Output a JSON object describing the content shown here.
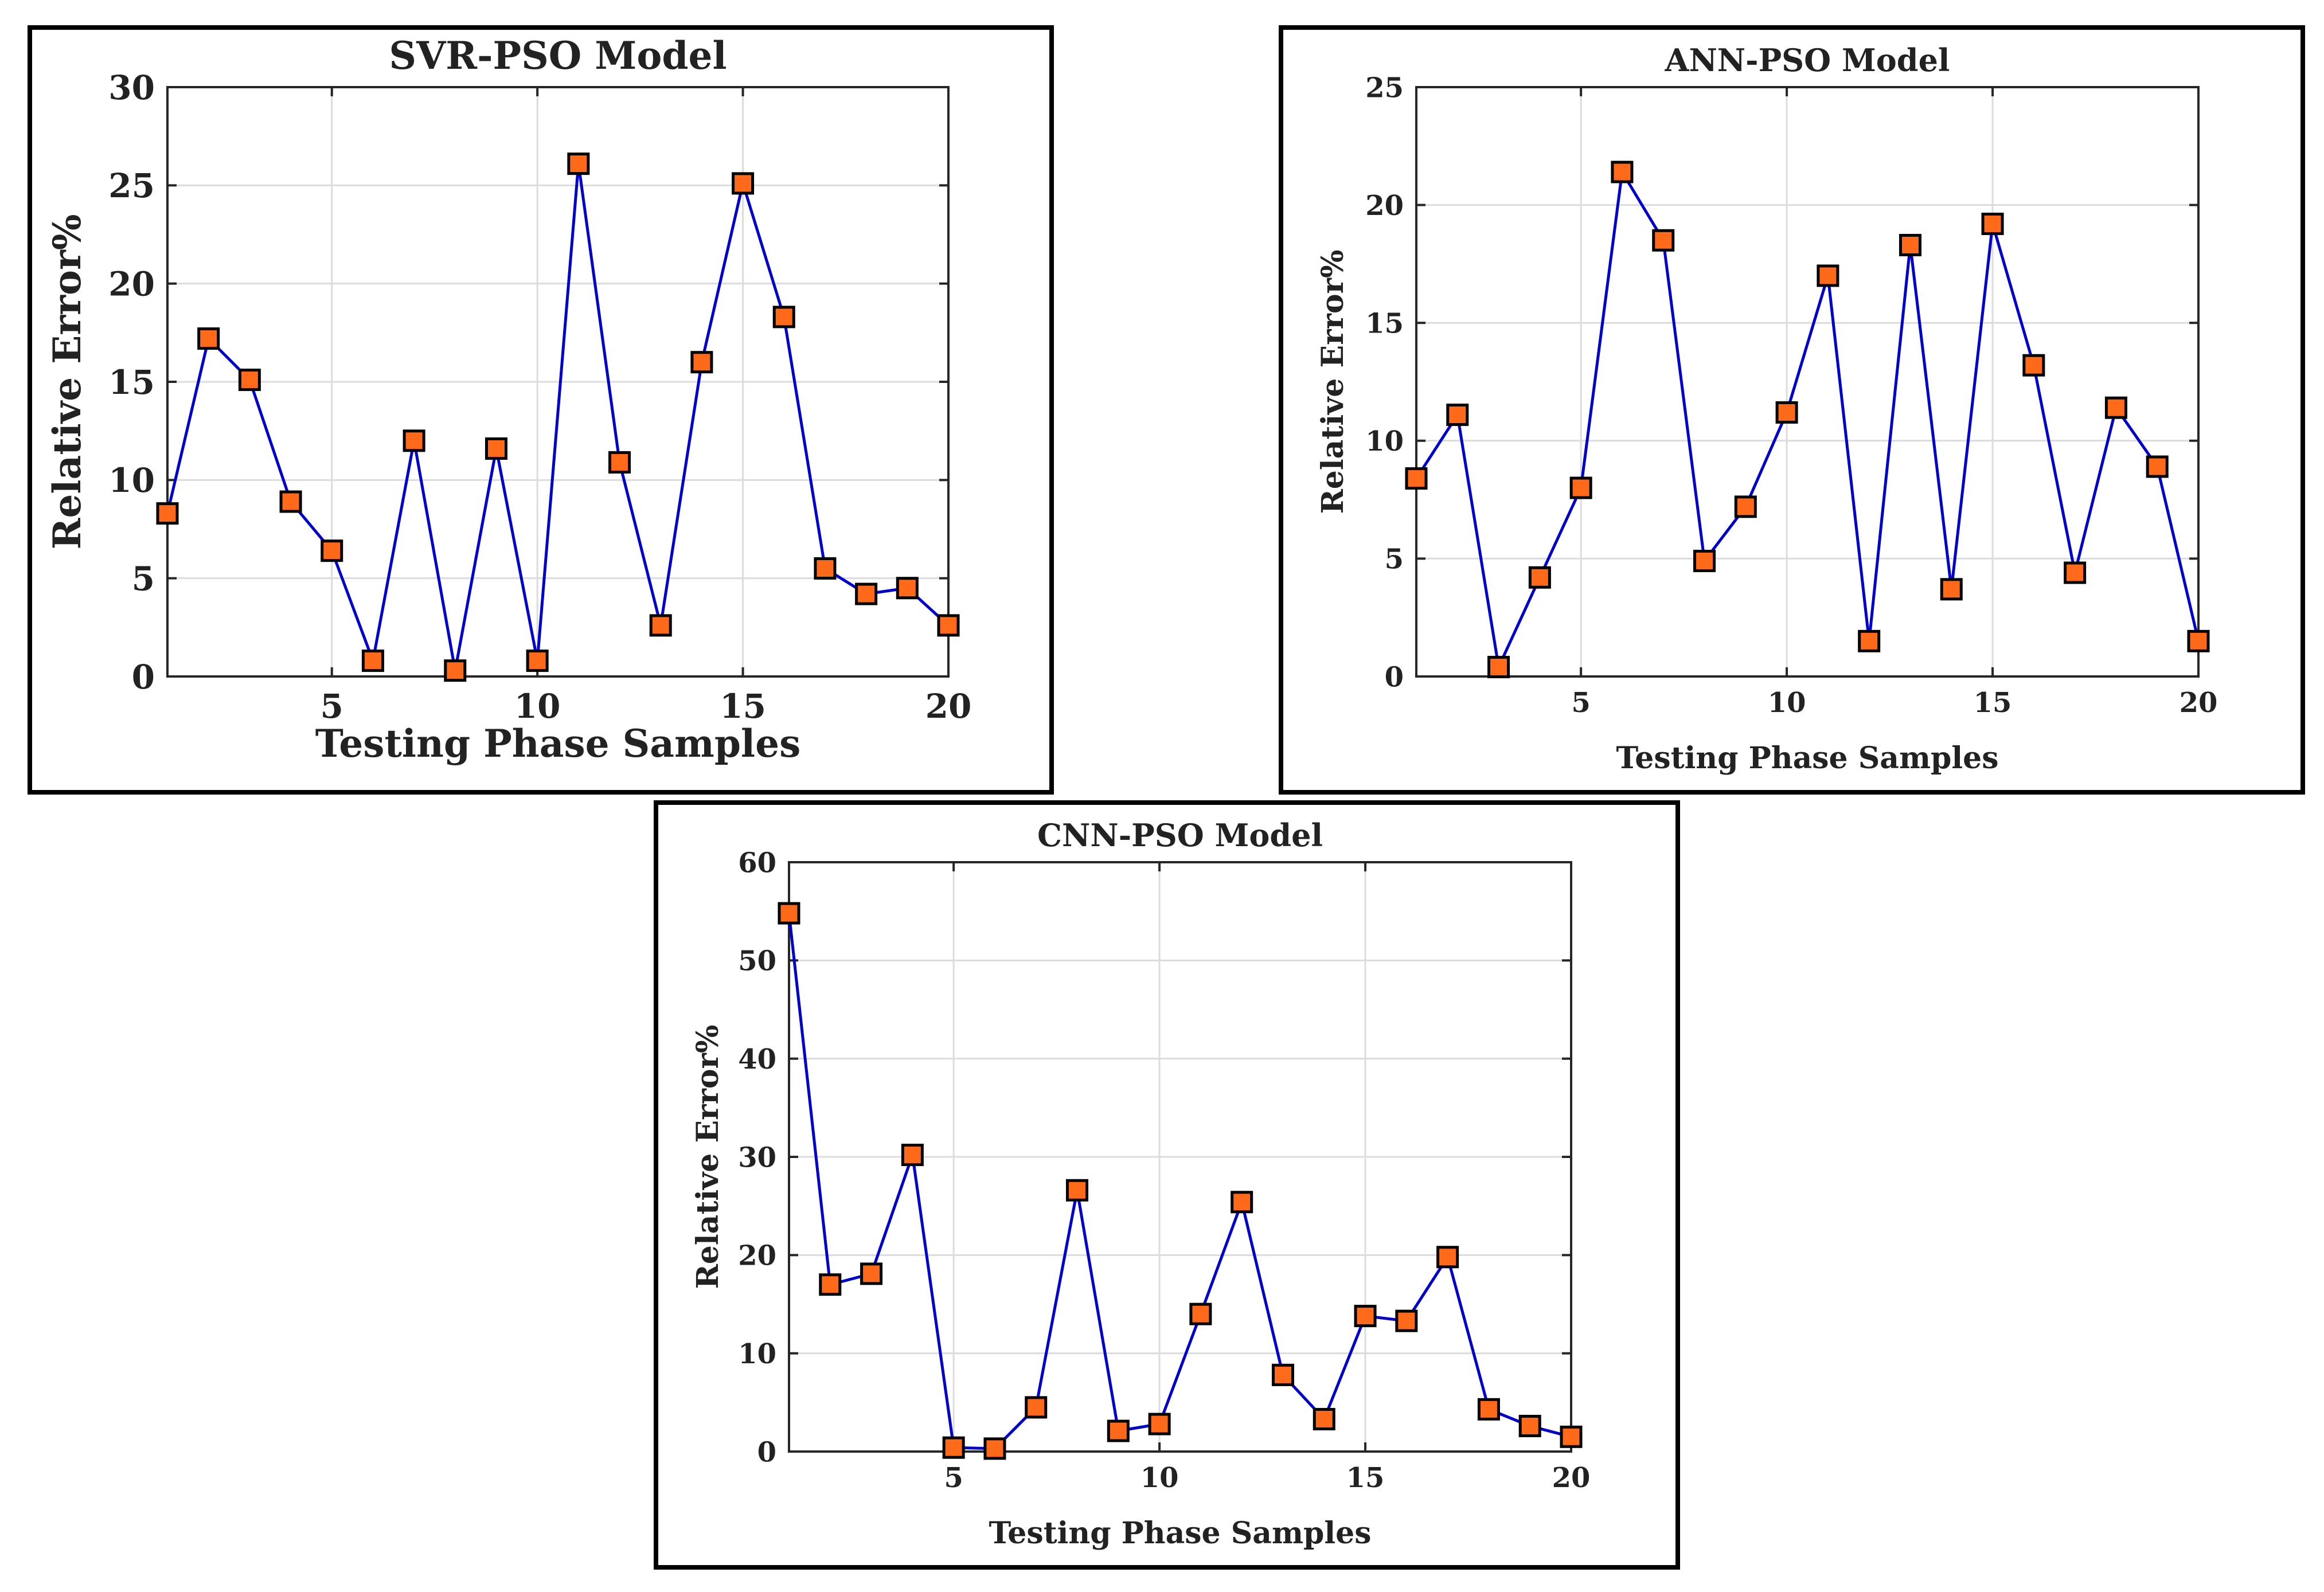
{
  "chart_data": [
    {
      "type": "line",
      "title": "SVR-PSO Model",
      "xlabel": "Testing Phase Samples",
      "ylabel": "Relative Error%",
      "xlim": [
        1,
        20
      ],
      "ylim": [
        0,
        30
      ],
      "xticks": [
        5,
        10,
        15,
        20
      ],
      "yticks": [
        0,
        5,
        10,
        15,
        20,
        25,
        30
      ],
      "grid": true,
      "line_color": "#0000cc",
      "marker_fill": "#ff6a1a",
      "marker_edge": "#000000",
      "x": [
        1,
        2,
        3,
        4,
        5,
        6,
        7,
        8,
        9,
        10,
        11,
        12,
        13,
        14,
        15,
        16,
        17,
        18,
        19,
        20
      ],
      "values": [
        8.3,
        17.2,
        15.1,
        8.9,
        6.4,
        0.8,
        12.0,
        0.3,
        11.6,
        0.8,
        26.1,
        10.9,
        2.6,
        16.0,
        25.1,
        18.3,
        5.5,
        4.2,
        4.5,
        2.6
      ]
    },
    {
      "type": "line",
      "title": "ANN-PSO Model",
      "xlabel": "Testing Phase Samples",
      "ylabel": "Relative Error%",
      "xlim": [
        1,
        20
      ],
      "ylim": [
        0,
        25
      ],
      "xticks": [
        5,
        10,
        15,
        20
      ],
      "yticks": [
        0,
        5,
        10,
        15,
        20,
        25
      ],
      "grid": true,
      "line_color": "#0000cc",
      "marker_fill": "#ff6a1a",
      "marker_edge": "#000000",
      "x": [
        1,
        2,
        3,
        4,
        5,
        6,
        7,
        8,
        9,
        10,
        11,
        12,
        13,
        14,
        15,
        16,
        17,
        18,
        19,
        20
      ],
      "values": [
        8.4,
        11.1,
        0.4,
        4.2,
        8.0,
        21.4,
        18.5,
        4.9,
        7.2,
        11.2,
        17.0,
        1.5,
        18.3,
        3.7,
        19.2,
        13.2,
        4.4,
        11.4,
        8.9,
        1.5
      ]
    },
    {
      "type": "line",
      "title": "CNN-PSO Model",
      "xlabel": "Testing Phase Samples",
      "ylabel": "Relative Error%",
      "xlim": [
        1,
        20
      ],
      "ylim": [
        0,
        60
      ],
      "xticks": [
        5,
        10,
        15,
        20
      ],
      "yticks": [
        0,
        10,
        20,
        30,
        40,
        50,
        60
      ],
      "grid": true,
      "line_color": "#0000cc",
      "marker_fill": "#ff6a1a",
      "marker_edge": "#000000",
      "x": [
        1,
        2,
        3,
        4,
        5,
        6,
        7,
        8,
        9,
        10,
        11,
        12,
        13,
        14,
        15,
        16,
        17,
        18,
        19,
        20
      ],
      "values": [
        54.8,
        17.0,
        18.1,
        30.2,
        0.4,
        0.3,
        4.5,
        26.6,
        2.1,
        2.8,
        14.0,
        25.4,
        7.8,
        3.3,
        13.8,
        13.3,
        19.8,
        4.3,
        2.6,
        1.5
      ]
    }
  ]
}
